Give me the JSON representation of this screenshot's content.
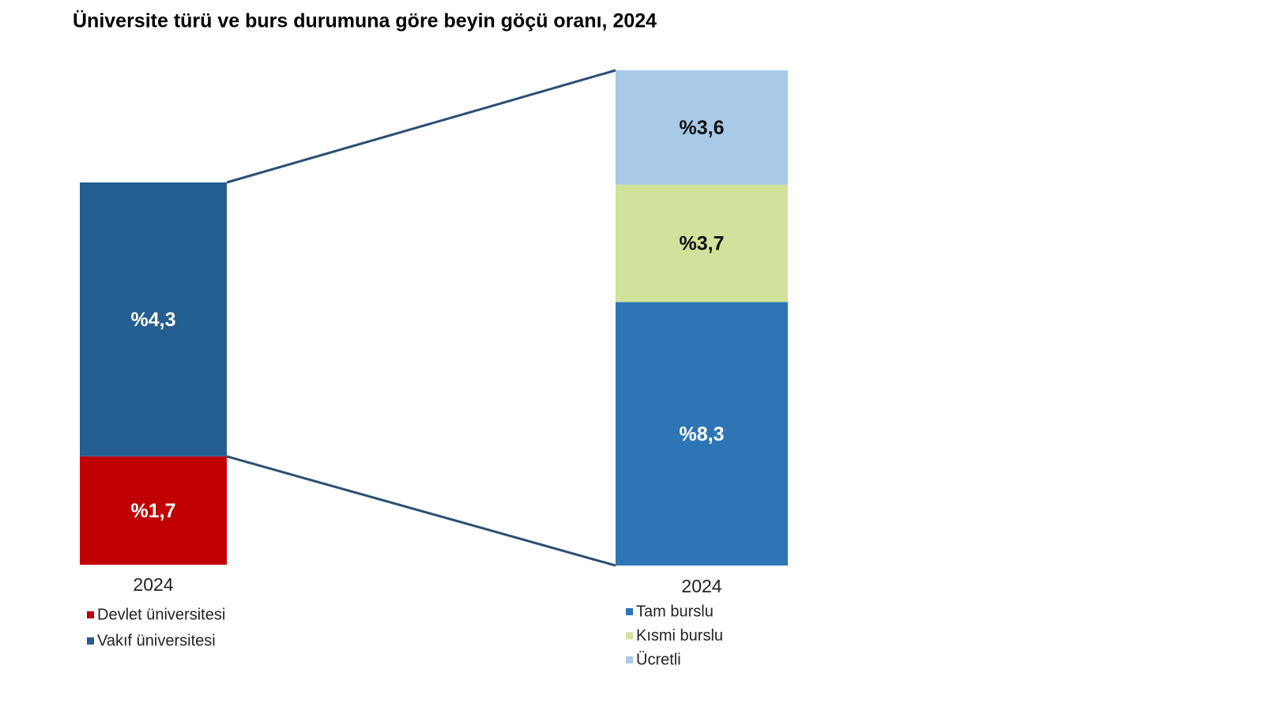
{
  "chart_data": [
    {
      "type": "stacked_bar",
      "title": "Üniversite türü ve burs durumuna göre beyin göçü oranı, 2024",
      "categories": [
        "2024"
      ],
      "series": [
        {
          "name": "Devlet üniversitesi",
          "color": "#c00000",
          "values": [
            1.7
          ],
          "value_labels": [
            "%1,7"
          ]
        },
        {
          "name": "Vakıf üniversitesi",
          "color": "#255e91",
          "values": [
            4.3
          ],
          "value_labels": [
            "%4,3"
          ]
        }
      ]
    },
    {
      "type": "stacked_bar",
      "categories": [
        "2024"
      ],
      "series": [
        {
          "name": "Tam burslu",
          "color": "#2e75b6",
          "values": [
            8.3
          ],
          "value_labels": [
            "%8,3"
          ]
        },
        {
          "name": "Kısmi burslu",
          "color": "#d2e29d",
          "values": [
            3.7
          ],
          "value_labels": [
            "%3,7"
          ]
        },
        {
          "name": "Ücretli",
          "color": "#a9c9e8",
          "values": [
            3.6
          ],
          "value_labels": [
            "%3,6"
          ]
        }
      ]
    }
  ]
}
